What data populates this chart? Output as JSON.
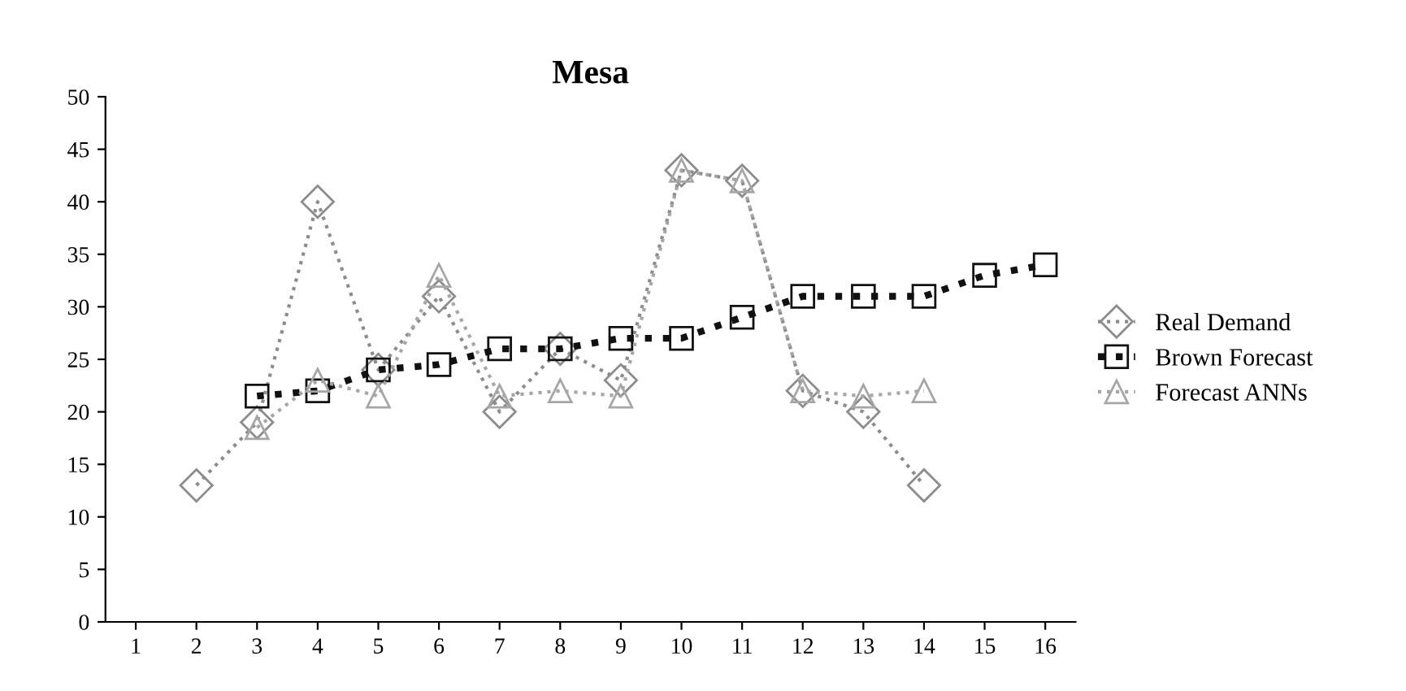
{
  "chart_data": {
    "type": "line",
    "title": "Mesa",
    "categories": [
      "1",
      "2",
      "3",
      "4",
      "5",
      "6",
      "7",
      "8",
      "9",
      "10",
      "11",
      "12",
      "13",
      "14",
      "15",
      "16"
    ],
    "ylim": [
      0,
      50
    ],
    "yticks": [
      0,
      5,
      10,
      15,
      20,
      25,
      30,
      35,
      40,
      45,
      50
    ],
    "grid": false,
    "legend": "right",
    "line_style": "dotted",
    "series": [
      {
        "name": "Real Demand",
        "color": "#8c8c8c",
        "marker": "diamond",
        "values": [
          null,
          13,
          19,
          40,
          24,
          31,
          20,
          26,
          23,
          43,
          42,
          22,
          20,
          13,
          null,
          null
        ]
      },
      {
        "name": "Brown Forecast",
        "color": "#111111",
        "marker": "square",
        "values": [
          null,
          null,
          21.5,
          22,
          24,
          24.5,
          26,
          26,
          27,
          27,
          29,
          31,
          31,
          31,
          33,
          34
        ]
      },
      {
        "name": "Forecast ANNs",
        "color": "#a6a6a6",
        "marker": "triangle",
        "values": [
          null,
          null,
          18.5,
          23,
          21.5,
          33,
          21.5,
          22,
          21.5,
          43,
          42,
          22,
          21.5,
          22,
          null,
          null
        ]
      }
    ]
  }
}
